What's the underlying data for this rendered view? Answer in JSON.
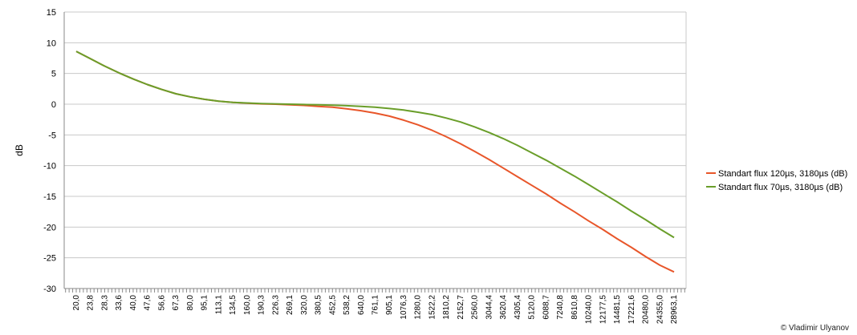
{
  "chart_data": {
    "type": "line",
    "ylabel": "dB",
    "xlabel": "",
    "ylim": [
      -30,
      15
    ],
    "y_ticks": [
      15,
      10,
      5,
      0,
      -5,
      -10,
      -15,
      -20,
      -25,
      -30
    ],
    "grid": "horizontal",
    "legend_position": "right",
    "x": [
      "20,0",
      "23,8",
      "28,3",
      "33,6",
      "40,0",
      "47,6",
      "56,6",
      "67,3",
      "80,0",
      "95,1",
      "113,1",
      "134,5",
      "160,0",
      "190,3",
      "226,3",
      "269,1",
      "320,0",
      "380,5",
      "452,5",
      "538,2",
      "640,0",
      "761,1",
      "905,1",
      "1076,3",
      "1280,0",
      "1522,2",
      "1810,2",
      "2152,7",
      "2560,0",
      "3044,4",
      "3620,4",
      "4305,4",
      "5120,0",
      "6088,7",
      "7240,8",
      "8610,8",
      "10240,0",
      "12177,5",
      "14481,5",
      "17221,6",
      "20480,0",
      "24355,0",
      "28963,1"
    ],
    "series": [
      {
        "name": "Standart flux 120µs, 3180µs (dB)",
        "color": "#e8562a",
        "values": [
          8.6,
          7.4,
          6.2,
          5.1,
          4.1,
          3.2,
          2.4,
          1.7,
          1.2,
          0.8,
          0.5,
          0.3,
          0.15,
          0.05,
          0.0,
          -0.1,
          -0.2,
          -0.35,
          -0.5,
          -0.75,
          -1.05,
          -1.45,
          -1.95,
          -2.6,
          -3.35,
          -4.25,
          -5.3,
          -6.45,
          -7.7,
          -9.0,
          -10.4,
          -11.8,
          -13.2,
          -14.6,
          -16.1,
          -17.5,
          -19.0,
          -20.4,
          -21.9,
          -23.3,
          -24.8,
          -26.2,
          -27.3
        ]
      },
      {
        "name": "Standart flux 70µs, 3180µs (dB)",
        "color": "#6a9e2a",
        "values": [
          8.6,
          7.4,
          6.2,
          5.1,
          4.1,
          3.2,
          2.4,
          1.7,
          1.2,
          0.8,
          0.5,
          0.3,
          0.2,
          0.1,
          0.05,
          0.0,
          -0.05,
          -0.1,
          -0.15,
          -0.25,
          -0.35,
          -0.5,
          -0.7,
          -0.95,
          -1.3,
          -1.7,
          -2.25,
          -2.9,
          -3.7,
          -4.6,
          -5.6,
          -6.7,
          -7.9,
          -9.1,
          -10.4,
          -11.7,
          -13.1,
          -14.5,
          -15.9,
          -17.4,
          -18.8,
          -20.3,
          -21.7
        ]
      }
    ]
  },
  "credit": "© Vladimir Ulyanov"
}
